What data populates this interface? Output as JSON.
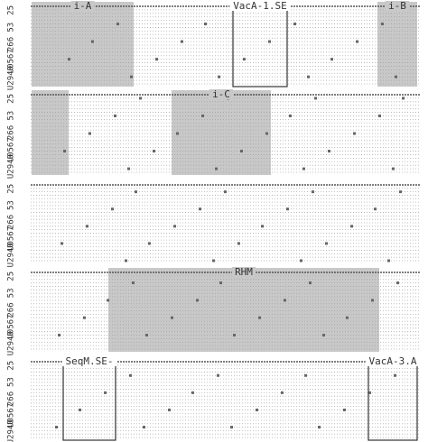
{
  "blocks": [
    {
      "row_labels": [
        "25",
        "53",
        "266",
        "U0567",
        "U2940"
      ],
      "regions": [
        {
          "label": "i-A",
          "style": "shaded"
        },
        {
          "label": "VacA-1.SE",
          "style": "boxed"
        },
        {
          "label": "i-B",
          "style": "shaded"
        }
      ]
    },
    {
      "row_labels": [
        "25",
        "53",
        "266",
        "U0567",
        "U2940"
      ],
      "regions": [
        {
          "style": "shaded"
        },
        {
          "label": "i-C",
          "style": "shaded"
        }
      ]
    },
    {
      "row_labels": [
        "25",
        "53",
        "266",
        "U0567",
        "U2940"
      ],
      "regions": []
    },
    {
      "row_labels": [
        "25",
        "53",
        "266",
        "U0567",
        "U2940"
      ],
      "regions": [
        {
          "label": "RHM",
          "style": "shaded"
        }
      ]
    },
    {
      "row_labels": [
        "25",
        "53",
        "266",
        "U0567",
        "U2940"
      ],
      "regions": [
        {
          "label": "SeqM.SE-",
          "style": "boxed"
        },
        {
          "label": "VacA-3.A",
          "style": "boxed"
        }
      ]
    }
  ]
}
